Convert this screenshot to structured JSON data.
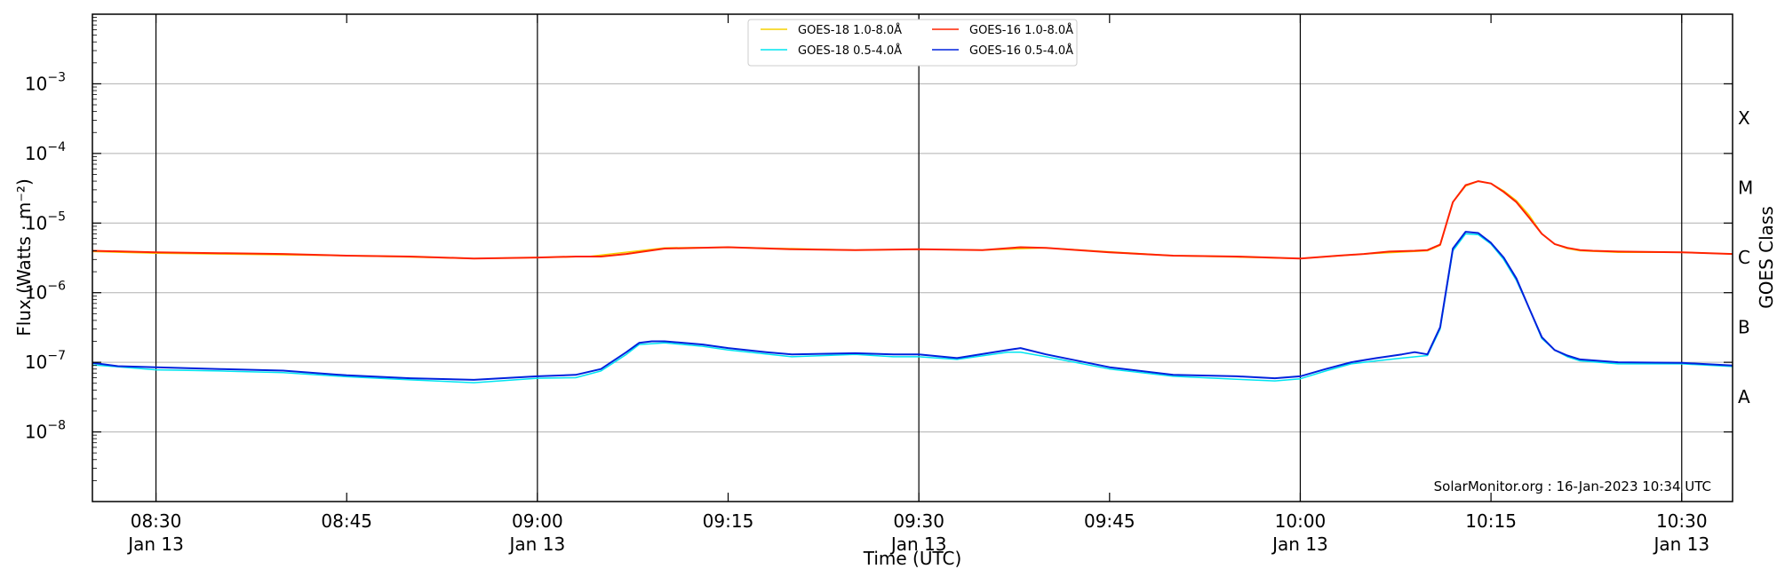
{
  "chart_data": {
    "type": "line",
    "title": "",
    "xlabel": "Time (UTC)",
    "ylabel": "Flux (Watts · m⁻²)",
    "y2label": "GOES Class",
    "yscale": "log",
    "ylim": [
      1e-09,
      0.01
    ],
    "xlim": [
      "08:25",
      "10:34"
    ],
    "grid": "horizontal at decades",
    "legend_location": "top-center",
    "credit": "SolarMonitor.org : 16-Jan-2023 10:34 UTC",
    "y_ticks": [
      {
        "value": 1e-08,
        "base": "10",
        "exp": "−8"
      },
      {
        "value": 1e-07,
        "base": "10",
        "exp": "−7"
      },
      {
        "value": 1e-06,
        "base": "10",
        "exp": "−6"
      },
      {
        "value": 1e-05,
        "base": "10",
        "exp": "−5"
      },
      {
        "value": 0.0001,
        "base": "10",
        "exp": "−4"
      },
      {
        "value": 0.001,
        "base": "10",
        "exp": "−3"
      }
    ],
    "x_ticks": [
      {
        "time": "08:30",
        "label": "08:30",
        "date": "Jan 13",
        "vline": true
      },
      {
        "time": "08:45",
        "label": "08:45",
        "date": "",
        "vline": false
      },
      {
        "time": "09:00",
        "label": "09:00",
        "date": "Jan 13",
        "vline": true
      },
      {
        "time": "09:15",
        "label": "09:15",
        "date": "",
        "vline": false
      },
      {
        "time": "09:30",
        "label": "09:30",
        "date": "Jan 13",
        "vline": true
      },
      {
        "time": "09:45",
        "label": "09:45",
        "date": "",
        "vline": false
      },
      {
        "time": "10:00",
        "label": "10:00",
        "date": "Jan 13",
        "vline": true
      },
      {
        "time": "10:15",
        "label": "10:15",
        "date": "",
        "vline": false
      },
      {
        "time": "10:30",
        "label": "10:30",
        "date": "Jan 13",
        "vline": true
      }
    ],
    "goes_classes": [
      {
        "label": "A",
        "value": 3.2e-08
      },
      {
        "label": "B",
        "value": 3.2e-07
      },
      {
        "label": "C",
        "value": 3.2e-06
      },
      {
        "label": "M",
        "value": 3.2e-05
      },
      {
        "label": "X",
        "value": 0.00032
      }
    ],
    "series": [
      {
        "name": "GOES-18 1.0-8.0Å",
        "color": "#f5d000",
        "width": 1.5,
        "x": [
          "08:25",
          "08:30",
          "08:45",
          "08:55",
          "09:00",
          "09:04",
          "09:10",
          "09:15",
          "09:25",
          "09:30",
          "09:35",
          "09:40",
          "09:50",
          "10:00",
          "10:05",
          "10:10",
          "10:11",
          "10:12",
          "10:13",
          "10:14",
          "10:15",
          "10:16",
          "10:17",
          "10:18",
          "10:19",
          "10:20",
          "10:21",
          "10:22",
          "10:25",
          "10:30",
          "10:34"
        ],
        "y": [
          3.9e-06,
          3.7e-06,
          3.4e-06,
          3.1e-06,
          3.2e-06,
          3.3e-06,
          4.4e-06,
          4.5e-06,
          4.1e-06,
          4.2e-06,
          4.1e-06,
          4.4e-06,
          3.4e-06,
          3.1e-06,
          3.6e-06,
          4e-06,
          4.8e-06,
          2e-05,
          3.4e-05,
          4e-05,
          3.7e-05,
          2.9e-05,
          2.1e-05,
          1.3e-05,
          7e-06,
          5e-06,
          4.3e-06,
          4e-06,
          3.8e-06,
          3.8e-06,
          3.6e-06
        ]
      },
      {
        "name": "GOES-18 0.5-4.0Å",
        "color": "#00e5f0",
        "width": 1.5,
        "x": [
          "08:25",
          "08:30",
          "08:35",
          "08:40",
          "08:45",
          "08:50",
          "08:55",
          "09:00",
          "09:03",
          "09:05",
          "09:07",
          "09:08",
          "09:10",
          "09:13",
          "09:15",
          "09:20",
          "09:25",
          "09:28",
          "09:30",
          "09:33",
          "09:37",
          "09:38",
          "09:40",
          "09:45",
          "09:50",
          "09:55",
          "09:58",
          "10:00",
          "10:02",
          "10:04",
          "10:06",
          "10:08",
          "10:10",
          "10:11",
          "10:12",
          "10:13",
          "10:14",
          "10:15",
          "10:16",
          "10:17",
          "10:18",
          "10:19",
          "10:20",
          "10:21",
          "10:22",
          "10:25",
          "10:30",
          "10:34"
        ],
        "y": [
          9.2e-08,
          7.8e-08,
          7.5e-08,
          7.1e-08,
          6.2e-08,
          5.6e-08,
          5.1e-08,
          5.9e-08,
          6e-08,
          7.5e-08,
          1.3e-07,
          1.8e-07,
          1.9e-07,
          1.7e-07,
          1.5e-07,
          1.2e-07,
          1.3e-07,
          1.2e-07,
          1.2e-07,
          1.1e-07,
          1.4e-07,
          1.4e-07,
          1.2e-07,
          8e-08,
          6.3e-08,
          5.7e-08,
          5.4e-08,
          5.8e-08,
          7.5e-08,
          9.5e-08,
          1.05e-07,
          1.15e-07,
          1.25e-07,
          3e-07,
          4e-06,
          7e-06,
          6.8e-06,
          5e-06,
          3e-06,
          1.5e-06,
          6e-07,
          2.2e-07,
          1.5e-07,
          1.2e-07,
          1.05e-07,
          9.5e-08,
          9.5e-08,
          8.7e-08
        ]
      },
      {
        "name": "GOES-16 1.0-8.0Å",
        "color": "#ff2200",
        "width": 2,
        "x": [
          "08:25",
          "08:30",
          "08:35",
          "08:40",
          "08:45",
          "08:50",
          "08:55",
          "09:00",
          "09:03",
          "09:05",
          "09:07",
          "09:10",
          "09:15",
          "09:20",
          "09:25",
          "09:30",
          "09:35",
          "09:38",
          "09:40",
          "09:45",
          "09:50",
          "09:55",
          "10:00",
          "10:03",
          "10:05",
          "10:07",
          "10:09",
          "10:10",
          "10:11",
          "10:12",
          "10:13",
          "10:14",
          "10:15",
          "10:16",
          "10:17",
          "10:18",
          "10:19",
          "10:20",
          "10:21",
          "10:22",
          "10:23",
          "10:25",
          "10:30",
          "10:34"
        ],
        "y": [
          4e-06,
          3.8e-06,
          3.7e-06,
          3.6e-06,
          3.4e-06,
          3.3e-06,
          3.1e-06,
          3.2e-06,
          3.3e-06,
          3.3e-06,
          3.6e-06,
          4.3e-06,
          4.5e-06,
          4.2e-06,
          4.1e-06,
          4.2e-06,
          4.1e-06,
          4.5e-06,
          4.4e-06,
          3.8e-06,
          3.4e-06,
          3.3e-06,
          3.1e-06,
          3.4e-06,
          3.6e-06,
          3.9e-06,
          4e-06,
          4.1e-06,
          4.9e-06,
          2e-05,
          3.5e-05,
          4e-05,
          3.7e-05,
          2.8e-05,
          2e-05,
          1.2e-05,
          7e-06,
          5e-06,
          4.4e-06,
          4.1e-06,
          4e-06,
          3.9e-06,
          3.8e-06,
          3.6e-06
        ]
      },
      {
        "name": "GOES-16 0.5-4.0Å",
        "color": "#0022dd",
        "width": 2,
        "x": [
          "08:25",
          "08:27",
          "08:30",
          "08:35",
          "08:40",
          "08:45",
          "08:50",
          "08:55",
          "09:00",
          "09:03",
          "09:05",
          "09:07",
          "09:08",
          "09:09",
          "09:10",
          "09:13",
          "09:15",
          "09:18",
          "09:20",
          "09:25",
          "09:28",
          "09:30",
          "09:33",
          "09:37",
          "09:38",
          "09:40",
          "09:45",
          "09:50",
          "09:55",
          "09:58",
          "10:00",
          "10:02",
          "10:04",
          "10:06",
          "10:08",
          "10:09",
          "10:10",
          "10:11",
          "10:12",
          "10:13",
          "10:14",
          "10:15",
          "10:16",
          "10:17",
          "10:18",
          "10:19",
          "10:20",
          "10:21",
          "10:22",
          "10:25",
          "10:30",
          "10:34"
        ],
        "y": [
          9.8e-08,
          8.8e-08,
          8.5e-08,
          8e-08,
          7.6e-08,
          6.5e-08,
          5.9e-08,
          5.6e-08,
          6.3e-08,
          6.6e-08,
          8e-08,
          1.4e-07,
          1.9e-07,
          2e-07,
          2e-07,
          1.8e-07,
          1.6e-07,
          1.4e-07,
          1.3e-07,
          1.35e-07,
          1.3e-07,
          1.3e-07,
          1.15e-07,
          1.5e-07,
          1.6e-07,
          1.3e-07,
          8.5e-08,
          6.6e-08,
          6.3e-08,
          5.9e-08,
          6.3e-08,
          8e-08,
          1e-07,
          1.15e-07,
          1.3e-07,
          1.4e-07,
          1.3e-07,
          3.2e-07,
          4.3e-06,
          7.5e-06,
          7.2e-06,
          5.2e-06,
          3.2e-06,
          1.6e-06,
          6e-07,
          2.3e-07,
          1.5e-07,
          1.25e-07,
          1.1e-07,
          1e-07,
          9.8e-08,
          9e-08
        ]
      }
    ]
  }
}
